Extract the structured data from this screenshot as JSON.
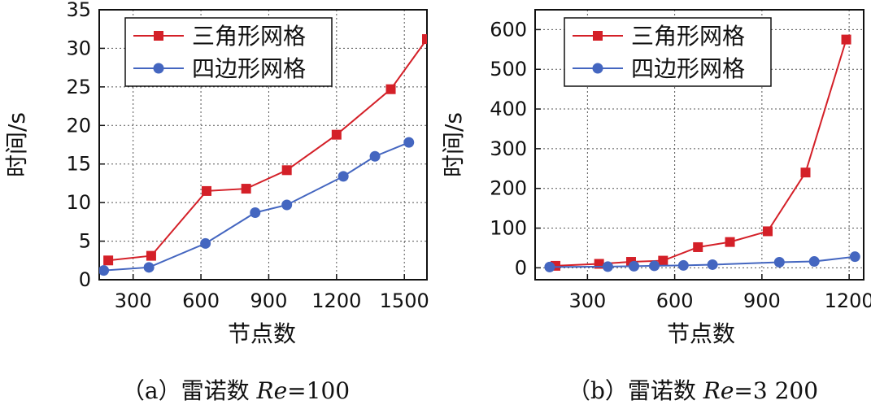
{
  "chart_data": [
    {
      "type": "line",
      "id": "a",
      "caption": {
        "prefix": "（a）雷诺数 ",
        "var": "Re",
        "suffix": "=100"
      },
      "xlabel": "节点数",
      "ylabel": "时间/s",
      "xlim": [
        150,
        1600
      ],
      "ylim": [
        0,
        35
      ],
      "xticks": [
        300,
        600,
        900,
        1200,
        1500
      ],
      "yticks": [
        0,
        5,
        10,
        15,
        20,
        25,
        30,
        35
      ],
      "grid": true,
      "legend_position": "top-left",
      "series": [
        {
          "name": "三角形网格",
          "marker": "square",
          "color": "#d42028",
          "x": [
            190,
            380,
            625,
            800,
            980,
            1200,
            1440,
            1600
          ],
          "y": [
            2.5,
            3.1,
            11.5,
            11.8,
            14.2,
            18.8,
            24.7,
            31.2
          ]
        },
        {
          "name": "四边形网格",
          "marker": "circle",
          "color": "#4466c0",
          "x": [
            170,
            370,
            620,
            840,
            980,
            1230,
            1370,
            1520
          ],
          "y": [
            1.2,
            1.6,
            4.7,
            8.7,
            9.7,
            13.4,
            16.0,
            17.8
          ]
        }
      ]
    },
    {
      "type": "line",
      "id": "b",
      "caption": {
        "prefix": "（b）雷诺数 ",
        "var": "Re",
        "suffix": "=3 200"
      },
      "xlabel": "节点数",
      "ylabel": "时间/s",
      "xlim": [
        120,
        1250
      ],
      "ylim": [
        -30,
        650
      ],
      "xticks": [
        300,
        600,
        900,
        1200
      ],
      "yticks": [
        0,
        100,
        200,
        300,
        400,
        500,
        600
      ],
      "grid": true,
      "legend_position": "top-left",
      "series": [
        {
          "name": "三角形网格",
          "marker": "square",
          "color": "#d42028",
          "x": [
            190,
            340,
            450,
            560,
            680,
            790,
            920,
            1050,
            1190
          ],
          "y": [
            5,
            10,
            15,
            18,
            52,
            65,
            92,
            240,
            575
          ]
        },
        {
          "name": "四边形网格",
          "marker": "circle",
          "color": "#4466c0",
          "x": [
            170,
            370,
            460,
            530,
            630,
            730,
            960,
            1080,
            1220
          ],
          "y": [
            2,
            3,
            4,
            5,
            6,
            8,
            14,
            16,
            28
          ]
        }
      ]
    }
  ]
}
